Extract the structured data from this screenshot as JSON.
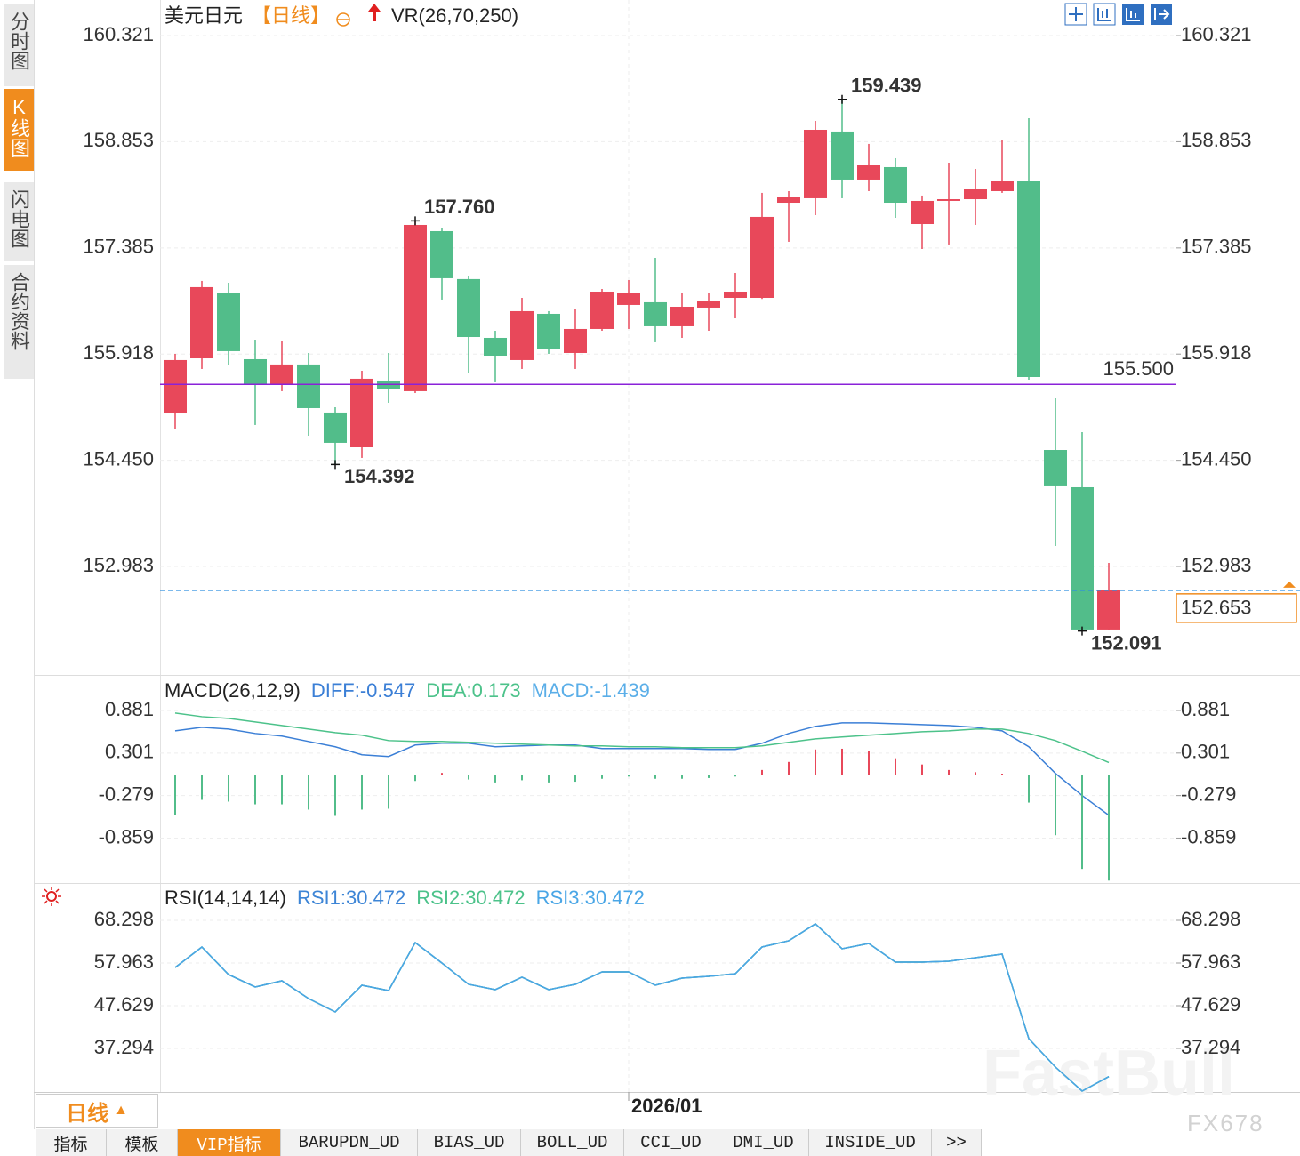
{
  "ui": {
    "side_tabs": [
      "分时图",
      "K线图",
      "闪电图",
      "合约资料"
    ],
    "active_side_tab": 1,
    "period_button": "日线",
    "bottom_tabs": [
      "指标",
      "模板",
      "VIP指标",
      "BARUPDN_UD",
      "BIAS_UD",
      "BOLL_UD",
      "CCI_UD",
      "DMI_UD",
      "INSIDE_UD",
      ">>"
    ],
    "active_bottom_tab": 2,
    "watermark": [
      "FastBull",
      "FX678"
    ]
  },
  "header": {
    "symbol": "美元日元",
    "period": "【日线】",
    "indicator": "VR(26,70,250)"
  },
  "chart_data": [
    {
      "type": "candlestick",
      "categories": [
        null,
        null,
        null,
        null,
        null,
        null,
        null,
        null,
        null,
        null,
        null,
        null,
        null,
        null,
        null,
        null,
        null,
        "2026/01",
        null,
        null,
        null,
        null,
        null,
        null,
        null,
        null,
        null,
        null,
        null,
        null,
        null,
        null,
        null,
        null,
        null,
        null
      ],
      "open": [
        155.097,
        155.859,
        156.757,
        155.847,
        155.503,
        155.774,
        155.11,
        154.63,
        155.552,
        155.405,
        157.617,
        156.954,
        156.142,
        155.835,
        156.474,
        155.933,
        156.265,
        156.597,
        156.634,
        156.302,
        156.56,
        156.695,
        156.695,
        158.01,
        158.072,
        158.994,
        158.33,
        158.502,
        157.715,
        158.035,
        158.059,
        158.17,
        158.305,
        154.593,
        154.077,
        152.111
      ],
      "high": [
        155.921,
        156.929,
        156.904,
        156.117,
        156.105,
        155.933,
        155.183,
        155.687,
        155.933,
        157.76,
        157.666,
        157.002,
        156.24,
        156.695,
        156.511,
        156.535,
        156.818,
        156.941,
        157.248,
        156.757,
        156.757,
        157.039,
        158.146,
        158.17,
        159.141,
        159.439,
        158.822,
        158.625,
        158.109,
        158.563,
        158.477,
        158.871,
        159.178,
        155.306,
        154.839,
        153.032
      ],
      "low": [
        154.876,
        155.712,
        155.773,
        154.938,
        155.405,
        154.79,
        154.392,
        154.483,
        155.245,
        155.38,
        156.671,
        155.651,
        155.528,
        155.712,
        155.921,
        155.712,
        156.24,
        156.265,
        156.081,
        156.142,
        156.24,
        156.412,
        156.68,
        157.47,
        157.838,
        158.072,
        158.17,
        157.801,
        157.371,
        157.433,
        157.703,
        158.146,
        155.564,
        153.266,
        152.091,
        152.111
      ],
      "close": [
        155.835,
        156.843,
        155.958,
        155.503,
        155.774,
        155.171,
        154.692,
        155.577,
        155.429,
        157.703,
        156.966,
        156.154,
        155.896,
        156.511,
        155.982,
        156.265,
        156.781,
        156.757,
        156.302,
        156.572,
        156.646,
        156.781,
        157.814,
        158.096,
        159.018,
        158.33,
        158.527,
        158.01,
        158.035,
        158.059,
        158.195,
        158.305,
        155.601,
        154.102,
        152.111,
        152.653
      ],
      "up_color": "#e8485a",
      "down_color": "#52bd8a",
      "ylim": [
        151.508,
        160.751
      ],
      "yticks": [
        160.321,
        158.853,
        157.385,
        155.918,
        {
          "value": 154.45,
          "label": "154.450"
        },
        152.983
      ],
      "grid": true,
      "annotations": [
        {
          "value": 157.76,
          "label": "157.760"
        },
        {
          "value": 154.392
        },
        {
          "value": 159.439
        },
        {
          "value": 152.091
        }
      ],
      "hline": {
        "value": 155.5,
        "label": "155.500",
        "color": "#8a22d8"
      },
      "last_price": {
        "value": 152.653,
        "color": "#2f8fe0",
        "label_color": "#f08c1e"
      }
    },
    {
      "type": "macd",
      "title": "MACD(26,12,9)",
      "ylim": [
        -1.46,
        1.33
      ],
      "yticks": [
        0.881,
        0.301,
        -0.279,
        -0.859
      ],
      "up_color": "#e8485a",
      "down_color": "#52bd8a",
      "series": [
        {
          "name": "DIFF:-0.547",
          "color": "#3b7fd6",
          "values": [
            0.604,
            0.652,
            0.628,
            0.568,
            0.532,
            0.459,
            0.387,
            0.278,
            0.254,
            0.411,
            0.435,
            0.435,
            0.387,
            0.399,
            0.411,
            0.411,
            0.362,
            0.362,
            0.362,
            0.362,
            0.35,
            0.35,
            0.435,
            0.568,
            0.665,
            0.713,
            0.713,
            0.701,
            0.689,
            0.677,
            0.652,
            0.604,
            0.387,
            0.024,
            -0.278,
            -0.547
          ]
        },
        {
          "name": "DEA:0.173",
          "color": "#4cc28a",
          "values": [
            0.846,
            0.797,
            0.773,
            0.725,
            0.677,
            0.628,
            0.58,
            0.544,
            0.471,
            0.459,
            0.459,
            0.447,
            0.435,
            0.423,
            0.411,
            0.399,
            0.399,
            0.387,
            0.387,
            0.375,
            0.375,
            0.375,
            0.399,
            0.447,
            0.495,
            0.52,
            0.544,
            0.568,
            0.592,
            0.604,
            0.628,
            0.628,
            0.568,
            0.471,
            0.326,
            0.173
          ]
        },
        {
          "name": "MACD:-1.439",
          "color": "#5aaee8",
          "style": "histogram",
          "values": [
            -0.544,
            -0.338,
            -0.362,
            -0.399,
            -0.399,
            -0.471,
            -0.556,
            -0.471,
            -0.459,
            -0.08,
            0.03,
            -0.06,
            -0.1,
            -0.07,
            -0.1,
            -0.09,
            -0.05,
            -0.02,
            -0.05,
            -0.05,
            -0.04,
            -0.02,
            0.07,
            0.18,
            0.35,
            0.36,
            0.33,
            0.23,
            0.145,
            0.07,
            0.04,
            0.02,
            -0.375,
            -0.82,
            -1.28,
            -1.439
          ]
        }
      ]
    },
    {
      "type": "line",
      "title": "RSI(14,14,14)",
      "ylim": [
        26.74,
        76.91
      ],
      "yticks": [
        68.298,
        57.963,
        47.629,
        37.294
      ],
      "series": [
        {
          "name": "RSI1:30.472",
          "color": "#3d85d6",
          "values": [
            56.89,
            61.84,
            55.17,
            52.15,
            53.66,
            49.35,
            46.12,
            52.58,
            51.29,
            62.92,
            57.96,
            52.8,
            51.51,
            54.52,
            51.51,
            52.8,
            55.81,
            55.81,
            52.58,
            54.3,
            54.73,
            55.38,
            61.84,
            63.35,
            67.44,
            61.41,
            62.7,
            58.18,
            58.18,
            58.39,
            59.26,
            60.12,
            39.66,
            32.77,
            26.96,
            30.472
          ]
        },
        {
          "name": "RSI2:30.472",
          "color": "#4cc28a",
          "values": [
            56.89,
            61.84,
            55.17,
            52.15,
            53.66,
            49.35,
            46.12,
            52.58,
            51.29,
            62.92,
            57.96,
            52.8,
            51.51,
            54.52,
            51.51,
            52.8,
            55.81,
            55.81,
            52.58,
            54.3,
            54.73,
            55.38,
            61.84,
            63.35,
            67.44,
            61.41,
            62.7,
            58.18,
            58.18,
            58.39,
            59.26,
            60.12,
            39.66,
            32.77,
            26.96,
            30.472
          ]
        },
        {
          "name": "RSI3:30.472",
          "color": "#4aa6e6",
          "values": [
            56.89,
            61.84,
            55.17,
            52.15,
            53.66,
            49.35,
            46.12,
            52.58,
            51.29,
            62.92,
            57.96,
            52.8,
            51.51,
            54.52,
            51.51,
            52.8,
            55.81,
            55.81,
            52.58,
            54.3,
            54.73,
            55.38,
            61.84,
            63.35,
            67.44,
            61.41,
            62.7,
            58.18,
            58.18,
            58.39,
            59.26,
            60.12,
            39.66,
            32.77,
            26.96,
            30.472
          ]
        }
      ]
    }
  ]
}
